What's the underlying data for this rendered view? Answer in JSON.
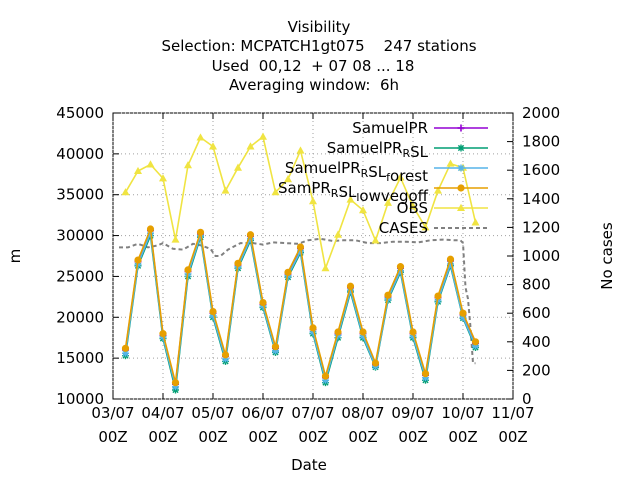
{
  "chart_data": {
    "type": "line",
    "title_lines": [
      "Visibility",
      "Selection: MCPATCH1gt075    247 stations",
      "Used  00,12  + 07 08 ... 18",
      "Averaging window:  6h"
    ],
    "xlabel": "Date",
    "ylabel": "m",
    "y2label": "No cases",
    "ylim": [
      10000,
      45000
    ],
    "y2lim": [
      0,
      2000
    ],
    "yticks": [
      "10000",
      "15000",
      "20000",
      "25000",
      "30000",
      "35000",
      "40000",
      "45000"
    ],
    "y2ticks": [
      "0",
      "200",
      "400",
      "600",
      "800",
      "1000",
      "1200",
      "1400",
      "1600",
      "1800",
      "2000"
    ],
    "xlim": [
      0,
      8
    ],
    "xticks": [
      {
        "x": 0,
        "line1": "03/07",
        "line2": "00Z"
      },
      {
        "x": 1,
        "line1": "04/07",
        "line2": "00Z"
      },
      {
        "x": 2,
        "line1": "05/07",
        "line2": "00Z"
      },
      {
        "x": 3,
        "line1": "06/07",
        "line2": "00Z"
      },
      {
        "x": 4,
        "line1": "07/07",
        "line2": "00Z"
      },
      {
        "x": 5,
        "line1": "08/07",
        "line2": "00Z"
      },
      {
        "x": 6,
        "line1": "09/07",
        "line2": "00Z"
      },
      {
        "x": 7,
        "line1": "10/07",
        "line2": "00Z"
      },
      {
        "x": 8,
        "line1": "11/07",
        "line2": "00Z"
      }
    ],
    "x": [
      0.25,
      0.5,
      0.75,
      1.0,
      1.25,
      1.5,
      1.75,
      2.0,
      2.25,
      2.5,
      2.75,
      3.0,
      3.25,
      3.5,
      3.75,
      4.0,
      4.25,
      4.5,
      4.75,
      5.0,
      5.25,
      5.5,
      5.75,
      6.0,
      6.25,
      6.5,
      6.75,
      7.0,
      7.25
    ],
    "series": [
      {
        "name": "SamuelPR",
        "color": "#9400d3",
        "marker": "plus",
        "axis": "y",
        "values": [
          16000,
          26800,
          30600,
          17800,
          11800,
          25600,
          30200,
          20500,
          15200,
          26400,
          29900,
          21600,
          16200,
          25300,
          28400,
          18500,
          12600,
          18000,
          23600,
          18000,
          14200,
          22500,
          26000,
          18000,
          12900,
          22400,
          26900,
          20300,
          16800
        ]
      },
      {
        "name": "SamuelPR_RSL",
        "color": "#009e73",
        "marker": "star",
        "axis": "y",
        "values": [
          15300,
          26300,
          30000,
          17400,
          11100,
          25000,
          29800,
          20000,
          14600,
          26000,
          29400,
          21200,
          15700,
          24900,
          27900,
          18000,
          12000,
          17500,
          23100,
          17500,
          13900,
          22100,
          25500,
          17500,
          12300,
          21900,
          26300,
          19900,
          16300
        ]
      },
      {
        "name": "SamuelPR_RSL_forest",
        "color": "#56b4e9",
        "marker": "star",
        "axis": "y",
        "values": [
          15600,
          26500,
          30300,
          17600,
          11500,
          25300,
          30000,
          20200,
          14900,
          26200,
          29600,
          21400,
          15900,
          25100,
          28100,
          18200,
          12300,
          17800,
          23300,
          17700,
          14000,
          22300,
          25700,
          17700,
          12600,
          22100,
          26500,
          20000,
          16500
        ]
      },
      {
        "name": "SamPR_RSL_lowvegoff",
        "color": "#e69f00",
        "marker": "circle",
        "axis": "y",
        "values": [
          16200,
          27000,
          30800,
          18000,
          12000,
          25800,
          30400,
          20700,
          15400,
          26600,
          30100,
          21800,
          16400,
          25500,
          28600,
          18700,
          12800,
          18200,
          23800,
          18200,
          14400,
          22700,
          26200,
          18200,
          13100,
          22600,
          27100,
          20500,
          17000
        ]
      },
      {
        "name": "OBS",
        "color": "#f0e442",
        "marker": "triangle",
        "axis": "y",
        "values": [
          35300,
          37900,
          38700,
          37000,
          29500,
          38600,
          42000,
          40900,
          35500,
          38300,
          40900,
          42100,
          35300,
          36900,
          40400,
          34200,
          26000,
          30100,
          34400,
          33100,
          29400,
          34000,
          37100,
          33600,
          31000,
          35500,
          38800,
          38300,
          31600
        ]
      }
    ],
    "cases": {
      "name": "CASES",
      "color": "#808080",
      "axis": "y2",
      "points": [
        [
          0.12,
          1060
        ],
        [
          0.3,
          1060
        ],
        [
          0.5,
          1085
        ],
        [
          0.7,
          1060
        ],
        [
          0.9,
          1075
        ],
        [
          1.0,
          1090
        ],
        [
          1.2,
          1050
        ],
        [
          1.4,
          1045
        ],
        [
          1.6,
          1085
        ],
        [
          1.75,
          1075
        ],
        [
          1.95,
          1050
        ],
        [
          2.05,
          1000
        ],
        [
          2.15,
          1000
        ],
        [
          2.3,
          1045
        ],
        [
          2.55,
          1090
        ],
        [
          2.8,
          1090
        ],
        [
          3.0,
          1080
        ],
        [
          3.2,
          1095
        ],
        [
          3.45,
          1090
        ],
        [
          3.7,
          1085
        ],
        [
          3.9,
          1110
        ],
        [
          4.15,
          1120
        ],
        [
          4.4,
          1105
        ],
        [
          4.6,
          1110
        ],
        [
          4.85,
          1110
        ],
        [
          5.1,
          1090
        ],
        [
          5.35,
          1090
        ],
        [
          5.6,
          1100
        ],
        [
          5.85,
          1100
        ],
        [
          6.1,
          1095
        ],
        [
          6.35,
          1110
        ],
        [
          6.6,
          1115
        ],
        [
          6.85,
          1110
        ],
        [
          6.95,
          1110
        ],
        [
          7.0,
          1090
        ],
        [
          7.05,
          780
        ],
        [
          7.1,
          700
        ],
        [
          7.15,
          500
        ],
        [
          7.2,
          250
        ],
        [
          7.25,
          250
        ]
      ]
    },
    "legend": {
      "position": "top-right",
      "entries": [
        {
          "series": 0,
          "parts": [
            {
              "t": "SamuelPR"
            }
          ]
        },
        {
          "series": 1,
          "parts": [
            {
              "t": "SamuelPR"
            },
            {
              "t": "R",
              "sub": true
            },
            {
              "t": "SL"
            }
          ]
        },
        {
          "series": 2,
          "parts": [
            {
              "t": "SamuelPR"
            },
            {
              "t": "R",
              "sub": true
            },
            {
              "t": "SL"
            },
            {
              "t": "f",
              "sub": true
            },
            {
              "t": "orest"
            }
          ]
        },
        {
          "series": 3,
          "parts": [
            {
              "t": "SamPR"
            },
            {
              "t": "R",
              "sub": true
            },
            {
              "t": "SL"
            },
            {
              "t": "l",
              "sub": true
            },
            {
              "t": "owvegoff"
            }
          ]
        },
        {
          "series": 4,
          "parts": [
            {
              "t": "OBS"
            }
          ]
        },
        {
          "series": "cases",
          "parts": [
            {
              "t": "CASES"
            }
          ]
        }
      ]
    }
  }
}
